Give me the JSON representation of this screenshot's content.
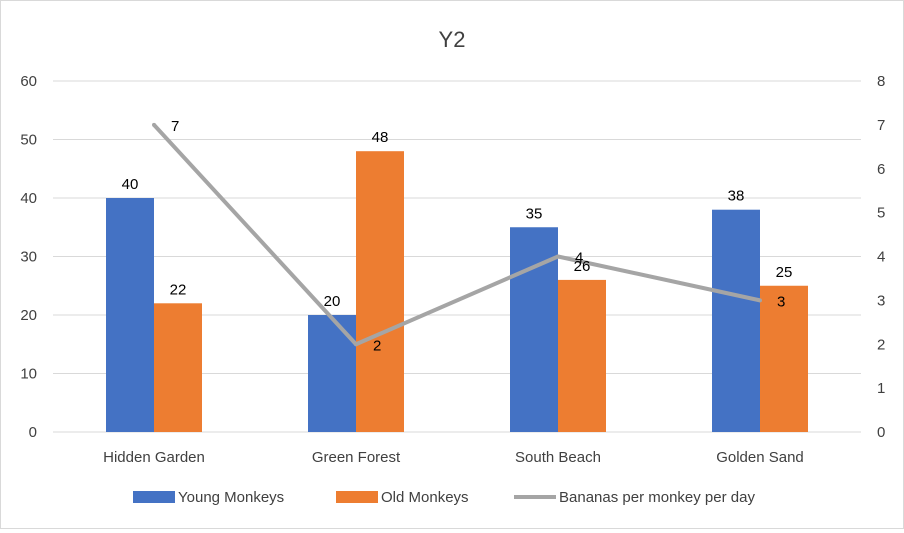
{
  "chart_data": {
    "type": "bar",
    "title": "Y2",
    "categories": [
      "Hidden Garden",
      "Green Forest",
      "South Beach",
      "Golden Sand"
    ],
    "series": [
      {
        "name": "Young Monkeys",
        "type": "bar",
        "axis": "left",
        "color": "#4472C4",
        "values": [
          40,
          20,
          35,
          38
        ]
      },
      {
        "name": "Old Monkeys",
        "type": "bar",
        "axis": "left",
        "color": "#ED7D31",
        "values": [
          22,
          48,
          26,
          25
        ]
      },
      {
        "name": "Bananas per monkey per day",
        "type": "line",
        "axis": "right",
        "color": "#A5A5A5",
        "values": [
          7,
          2,
          4,
          3
        ]
      }
    ],
    "y_left": {
      "range": [
        0,
        60
      ],
      "ticks": [
        "0",
        "10",
        "20",
        "30",
        "40",
        "50",
        "60"
      ]
    },
    "y_right": {
      "range": [
        0,
        8
      ],
      "ticks": [
        "0",
        "1",
        "2",
        "3",
        "4",
        "5",
        "6",
        "7",
        "8"
      ]
    },
    "grid": true,
    "legend_position": "bottom"
  }
}
